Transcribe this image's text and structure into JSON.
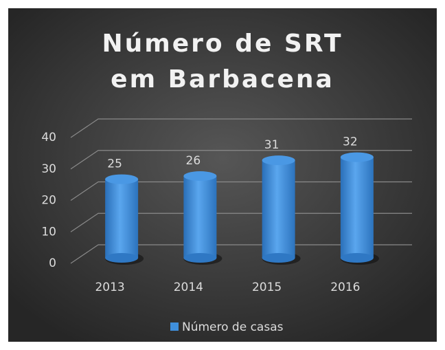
{
  "chart_data": {
    "type": "bar3d",
    "title": "Número de SRT em Barbacena",
    "categories": [
      "2013",
      "2014",
      "2015",
      "2016"
    ],
    "series": [
      {
        "name": "Número de casas",
        "color": "#3f8fdc",
        "values": [
          25,
          26,
          31,
          32
        ]
      }
    ],
    "ylim": [
      0,
      40
    ],
    "yticks": [
      0,
      10,
      20,
      30,
      40
    ],
    "grid": true,
    "legend": "bottom"
  }
}
